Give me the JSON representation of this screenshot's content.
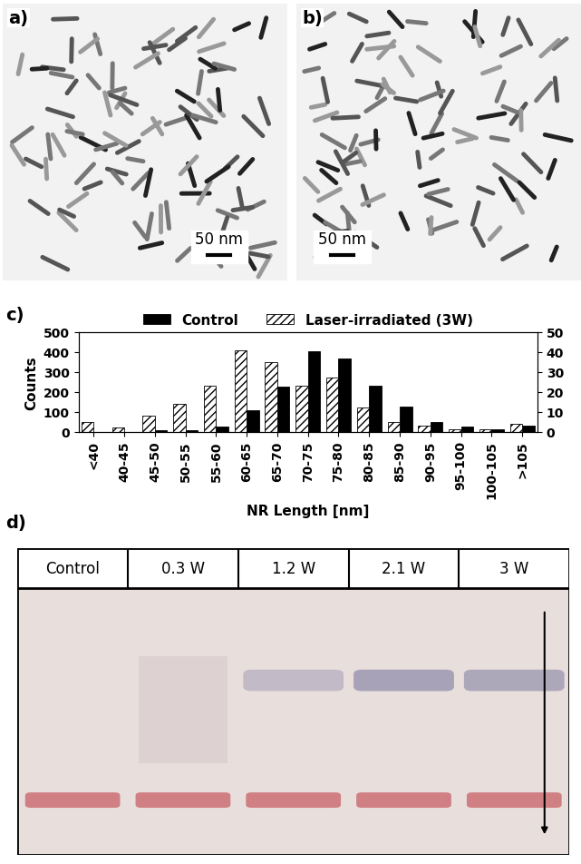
{
  "panels": [
    {
      "label": "a)",
      "scale_bar": "50 nm"
    },
    {
      "label": "b)",
      "scale_bar": "50 nm"
    }
  ],
  "chart_label": "c)",
  "chart_data": {
    "type": "bar",
    "xlabel": "NR Length [nm]",
    "ylabel": "Counts",
    "categories": [
      "<40",
      "40-45",
      "45-50",
      "50-55",
      "55-60",
      "60-65",
      "65-70",
      "70-75",
      "75-80",
      "80-85",
      "85-90",
      "90-95",
      "95-100",
      "100-105",
      ">105"
    ],
    "series": [
      {
        "name": "Control",
        "color": "#000000",
        "values": [
          0,
          0,
          5,
          5,
          25,
          105,
          225,
          405,
          365,
          230,
          125,
          50,
          25,
          10,
          30
        ]
      },
      {
        "name": "Laser-irradiated (3W)",
        "color": "#ffffff",
        "values": [
          50,
          20,
          80,
          140,
          230,
          410,
          350,
          230,
          270,
          120,
          50,
          30,
          10,
          10,
          40
        ]
      }
    ],
    "ylim": [
      0,
      500
    ],
    "yticks": [
      0,
      100,
      200,
      300,
      400,
      500
    ],
    "y2lim": [
      0,
      50
    ],
    "y2ticks": [
      0,
      10,
      20,
      30,
      40,
      50
    ],
    "legend": "upper center"
  },
  "gel": {
    "label": "d)",
    "lanes": [
      "Control",
      "0.3 W",
      "1.2 W",
      "2.1 W",
      "3 W"
    ]
  }
}
